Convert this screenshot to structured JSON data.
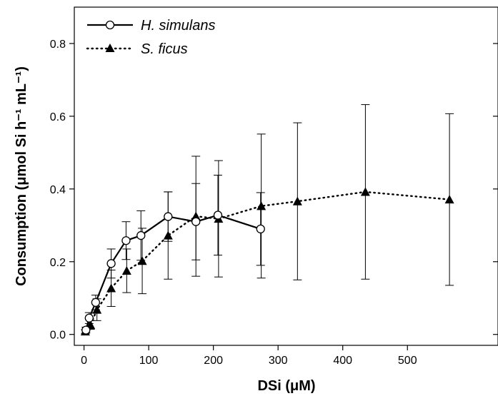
{
  "chart_data": {
    "type": "line",
    "xlabel": "DSi (μM)",
    "ylabel": "Consumption (μmol Si h⁻¹ mL⁻¹)",
    "xlim": [
      -15,
      640
    ],
    "ylim": [
      -0.03,
      0.9
    ],
    "xticks": [
      "0",
      "100",
      "200",
      "300",
      "400",
      "500"
    ],
    "yticks": [
      "0.0",
      "0.2",
      "0.4",
      "0.6",
      "0.8"
    ],
    "grid": false,
    "legend_position": "top-left",
    "series": [
      {
        "name": "H. simulans",
        "marker": "open-circle",
        "line": "solid",
        "color": "#000000",
        "x": [
          3,
          8,
          18,
          42,
          65,
          88,
          130,
          173,
          207,
          273
        ],
        "y": [
          0.012,
          0.045,
          0.088,
          0.195,
          0.258,
          0.272,
          0.324,
          0.31,
          0.328,
          0.29
        ],
        "err": [
          0.008,
          0.015,
          0.02,
          0.04,
          0.052,
          0.068,
          0.068,
          0.105,
          0.11,
          0.1
        ]
      },
      {
        "name": "S. ficus",
        "marker": "filled-triangle",
        "line": "dotted",
        "color": "#000000",
        "x": [
          2,
          10,
          20,
          42,
          66,
          90,
          130,
          173,
          208,
          274,
          330,
          435,
          565
        ],
        "y": [
          0.008,
          0.026,
          0.068,
          0.127,
          0.175,
          0.202,
          0.272,
          0.325,
          0.318,
          0.353,
          0.366,
          0.392,
          0.371
        ],
        "err": [
          0.005,
          0.012,
          0.03,
          0.05,
          0.06,
          0.09,
          0.12,
          0.165,
          0.16,
          0.198,
          0.216,
          0.24,
          0.236
        ]
      }
    ]
  }
}
